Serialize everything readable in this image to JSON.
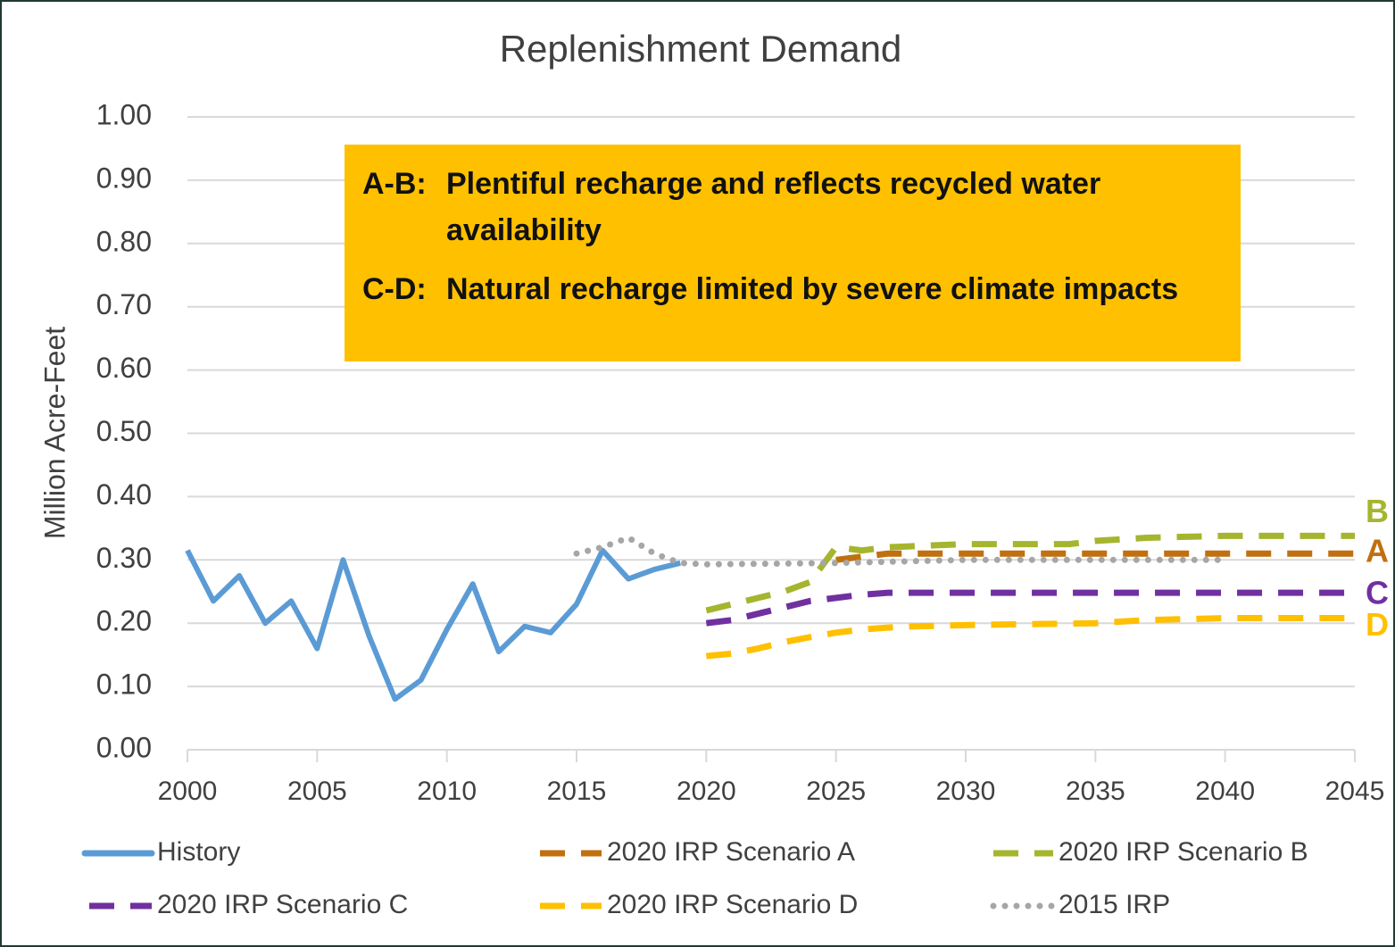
{
  "chart_data": {
    "type": "line",
    "title": "Replenishment Demand",
    "y_label": "Million Acre-Feet",
    "xlim": [
      2000,
      2045
    ],
    "xticks": [
      2000,
      2005,
      2010,
      2015,
      2020,
      2025,
      2030,
      2035,
      2040,
      2045
    ],
    "ylim": [
      0,
      1
    ],
    "yticks": [
      {
        "value": 0,
        "label": "0.00"
      },
      {
        "value": 0.1,
        "label": "0.10"
      },
      {
        "value": 0.2,
        "label": "0.20"
      },
      {
        "value": 0.3,
        "label": "0.30"
      },
      {
        "value": 0.4,
        "label": "0.40"
      },
      {
        "value": 0.5,
        "label": "0.50"
      },
      {
        "value": 0.6,
        "label": "0.60"
      },
      {
        "value": 0.7,
        "label": "0.70"
      },
      {
        "value": 0.8,
        "label": "0.80"
      },
      {
        "value": 0.9,
        "label": "0.90"
      },
      {
        "value": 1,
        "label": "1.00"
      }
    ],
    "grid": true,
    "legend": "bottom",
    "series": [
      {
        "name": "History",
        "color": "#5B9BD5",
        "style": "solid",
        "x": [
          2000,
          2001,
          2002,
          2003,
          2004,
          2005,
          2006,
          2007,
          2008,
          2009,
          2010,
          2011,
          2012,
          2013,
          2014,
          2015,
          2016,
          2017,
          2018,
          2019
        ],
        "values": [
          0.315,
          0.235,
          0.275,
          0.2,
          0.235,
          0.16,
          0.3,
          0.18,
          0.08,
          0.11,
          0.19,
          0.262,
          0.155,
          0.195,
          0.185,
          0.23,
          0.315,
          0.27,
          0.285,
          0.295
        ]
      },
      {
        "name": "2020 IRP Scenario A",
        "color": "#C0700F",
        "style": "dash",
        "end_label": "A",
        "x": [
          2025,
          2026,
          2027,
          2045
        ],
        "values": [
          0.3,
          0.305,
          0.31,
          0.31
        ]
      },
      {
        "name": "2020 IRP Scenario B",
        "color": "#A5B52E",
        "style": "dash",
        "end_label": "B",
        "x": [
          2020,
          2021,
          2022,
          2023,
          2024,
          2025,
          2026,
          2027,
          2030,
          2034,
          2035,
          2037,
          2040,
          2045
        ],
        "values": [
          0.22,
          0.23,
          0.24,
          0.25,
          0.265,
          0.32,
          0.315,
          0.32,
          0.325,
          0.325,
          0.33,
          0.335,
          0.338,
          0.338
        ]
      },
      {
        "name": "2020 IRP Scenario C",
        "color": "#7030A0",
        "style": "dash",
        "end_label": "C",
        "x": [
          2020,
          2021,
          2022,
          2023,
          2024,
          2025,
          2026,
          2027,
          2045
        ],
        "values": [
          0.2,
          0.205,
          0.215,
          0.225,
          0.235,
          0.24,
          0.245,
          0.248,
          0.248
        ]
      },
      {
        "name": "2020 IRP Scenario D",
        "color": "#FFC000",
        "style": "dash",
        "end_label": "D",
        "x": [
          2020,
          2021,
          2022,
          2023,
          2024,
          2025,
          2026,
          2027,
          2028,
          2030,
          2035,
          2037,
          2040,
          2045
        ],
        "values": [
          0.148,
          0.152,
          0.16,
          0.17,
          0.178,
          0.185,
          0.19,
          0.193,
          0.195,
          0.197,
          0.2,
          0.205,
          0.208,
          0.208
        ]
      },
      {
        "name": "2015 IRP",
        "color": "#A6A6A6",
        "style": "dot",
        "x": [
          2015,
          2016,
          2017,
          2018,
          2019,
          2020,
          2025,
          2030,
          2040
        ],
        "values": [
          0.31,
          0.32,
          0.335,
          0.31,
          0.295,
          0.293,
          0.295,
          0.3,
          0.3
        ]
      }
    ],
    "annotation": [
      {
        "label": "A-B:",
        "text": "Plentiful recharge and reflects recycled water availability"
      },
      {
        "label": "C-D:",
        "text": "Natural recharge limited by severe climate impacts"
      }
    ]
  }
}
